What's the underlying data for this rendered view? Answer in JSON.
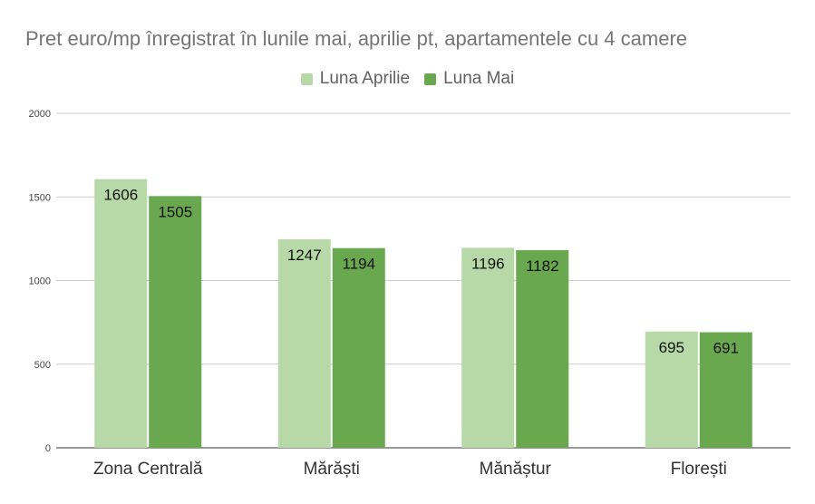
{
  "chart_data": {
    "type": "bar",
    "title": "Pret euro/mp înregistrat în lunile mai, aprilie pt, apartamentele cu 4 camere",
    "xlabel": "",
    "ylabel": "",
    "categories": [
      "Zona Centrală",
      "Mărăști",
      "Mănăștur",
      "Florești"
    ],
    "series": [
      {
        "name": "Luna Aprilie",
        "color": "#b7d9a8",
        "values": [
          1606,
          1247,
          1196,
          695
        ]
      },
      {
        "name": "Luna Mai",
        "color": "#6aa84f",
        "values": [
          1505,
          1194,
          1182,
          691
        ]
      }
    ],
    "ylim": [
      0,
      2000
    ],
    "yticks": [
      0,
      500,
      1000,
      1500,
      2000
    ],
    "grid": true,
    "legend_position": "top-center",
    "data_labels": true
  }
}
